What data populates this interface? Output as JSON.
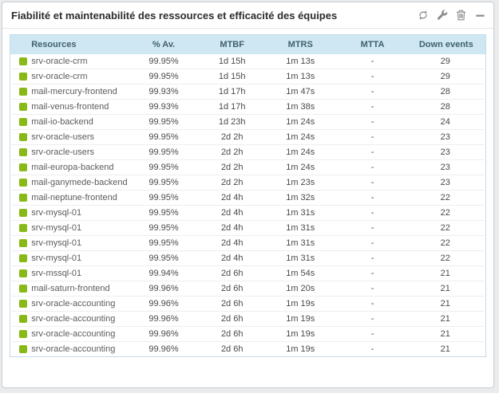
{
  "widget": {
    "title": "Fiabilité et maintenabilité des ressources et efficacité des équipes",
    "toolbar": {
      "refresh": "refresh",
      "configure": "configure",
      "delete": "delete",
      "minimize": "minimize"
    }
  },
  "table": {
    "columns": [
      "Resources",
      "% Av.",
      "MTBF",
      "MTRS",
      "MTTA",
      "Down events"
    ],
    "rows": [
      {
        "status": "ok",
        "name": "srv-oracle-crm",
        "availability": "99.95%",
        "mtbf": "1d 15h",
        "mtrs": "1m 13s",
        "mtta": "-",
        "down_events": "29"
      },
      {
        "status": "ok",
        "name": "srv-oracle-crm",
        "availability": "99.95%",
        "mtbf": "1d 15h",
        "mtrs": "1m 13s",
        "mtta": "-",
        "down_events": "29"
      },
      {
        "status": "ok",
        "name": "mail-mercury-frontend",
        "availability": "99.93%",
        "mtbf": "1d 17h",
        "mtrs": "1m 47s",
        "mtta": "-",
        "down_events": "28"
      },
      {
        "status": "ok",
        "name": "mail-venus-frontend",
        "availability": "99.93%",
        "mtbf": "1d 17h",
        "mtrs": "1m 38s",
        "mtta": "-",
        "down_events": "28"
      },
      {
        "status": "ok",
        "name": "mail-io-backend",
        "availability": "99.95%",
        "mtbf": "1d 23h",
        "mtrs": "1m 24s",
        "mtta": "-",
        "down_events": "24"
      },
      {
        "status": "ok",
        "name": "srv-oracle-users",
        "availability": "99.95%",
        "mtbf": "2d 2h",
        "mtrs": "1m 24s",
        "mtta": "-",
        "down_events": "23"
      },
      {
        "status": "ok",
        "name": "srv-oracle-users",
        "availability": "99.95%",
        "mtbf": "2d 2h",
        "mtrs": "1m 24s",
        "mtta": "-",
        "down_events": "23"
      },
      {
        "status": "ok",
        "name": "mail-europa-backend",
        "availability": "99.95%",
        "mtbf": "2d 2h",
        "mtrs": "1m 24s",
        "mtta": "-",
        "down_events": "23"
      },
      {
        "status": "ok",
        "name": "mail-ganymede-backend",
        "availability": "99.95%",
        "mtbf": "2d 2h",
        "mtrs": "1m 23s",
        "mtta": "-",
        "down_events": "23"
      },
      {
        "status": "ok",
        "name": "mail-neptune-frontend",
        "availability": "99.95%",
        "mtbf": "2d 4h",
        "mtrs": "1m 32s",
        "mtta": "-",
        "down_events": "22"
      },
      {
        "status": "ok",
        "name": "srv-mysql-01",
        "availability": "99.95%",
        "mtbf": "2d 4h",
        "mtrs": "1m 31s",
        "mtta": "-",
        "down_events": "22"
      },
      {
        "status": "ok",
        "name": "srv-mysql-01",
        "availability": "99.95%",
        "mtbf": "2d 4h",
        "mtrs": "1m 31s",
        "mtta": "-",
        "down_events": "22"
      },
      {
        "status": "ok",
        "name": "srv-mysql-01",
        "availability": "99.95%",
        "mtbf": "2d 4h",
        "mtrs": "1m 31s",
        "mtta": "-",
        "down_events": "22"
      },
      {
        "status": "ok",
        "name": "srv-mysql-01",
        "availability": "99.95%",
        "mtbf": "2d 4h",
        "mtrs": "1m 31s",
        "mtta": "-",
        "down_events": "22"
      },
      {
        "status": "ok",
        "name": "srv-mssql-01",
        "availability": "99.94%",
        "mtbf": "2d 6h",
        "mtrs": "1m 54s",
        "mtta": "-",
        "down_events": "21"
      },
      {
        "status": "ok",
        "name": "mail-saturn-frontend",
        "availability": "99.96%",
        "mtbf": "2d 6h",
        "mtrs": "1m 20s",
        "mtta": "-",
        "down_events": "21"
      },
      {
        "status": "ok",
        "name": "srv-oracle-accounting",
        "availability": "99.96%",
        "mtbf": "2d 6h",
        "mtrs": "1m 19s",
        "mtta": "-",
        "down_events": "21"
      },
      {
        "status": "ok",
        "name": "srv-oracle-accounting",
        "availability": "99.96%",
        "mtbf": "2d 6h",
        "mtrs": "1m 19s",
        "mtta": "-",
        "down_events": "21"
      },
      {
        "status": "ok",
        "name": "srv-oracle-accounting",
        "availability": "99.96%",
        "mtbf": "2d 6h",
        "mtrs": "1m 19s",
        "mtta": "-",
        "down_events": "21"
      },
      {
        "status": "ok",
        "name": "srv-oracle-accounting",
        "availability": "99.96%",
        "mtbf": "2d 6h",
        "mtrs": "1m 19s",
        "mtta": "-",
        "down_events": "21"
      }
    ]
  },
  "colors": {
    "status_ok": "#88b917",
    "table_header_bg": "#cee7f3",
    "table_header_text": "#41606e",
    "table_border": "#c2dcea",
    "icon_gray": "#8b8b8b"
  }
}
